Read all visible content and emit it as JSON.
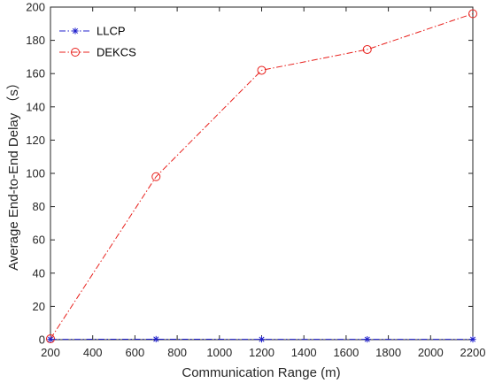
{
  "chart_data": {
    "type": "line",
    "title": "",
    "xlabel": "Communication Range (m)",
    "ylabel": "Average End-to-End Delay （s）",
    "x": [
      200,
      700,
      1200,
      1700,
      2200
    ],
    "xlim": [
      200,
      2200
    ],
    "ylim": [
      0,
      200
    ],
    "xticks": [
      "200",
      "400",
      "600",
      "800",
      "1000",
      "1200",
      "1400",
      "1600",
      "1800",
      "2000",
      "2200"
    ],
    "yticks": [
      "0",
      "20",
      "40",
      "60",
      "80",
      "100",
      "120",
      "140",
      "160",
      "180",
      "200"
    ],
    "grid": false,
    "legend_position": "top-left",
    "series": [
      {
        "name": "LLCP",
        "values": [
          0.2,
          0.3,
          0.2,
          0.2,
          0.2
        ],
        "color": "#1f1fcc",
        "marker": "star",
        "linestyle": "dash-dot"
      },
      {
        "name": "DEKCS",
        "values": [
          0.5,
          98,
          162,
          174.5,
          196
        ],
        "color": "#e8201c",
        "marker": "circle",
        "linestyle": "dash-dot"
      }
    ]
  }
}
